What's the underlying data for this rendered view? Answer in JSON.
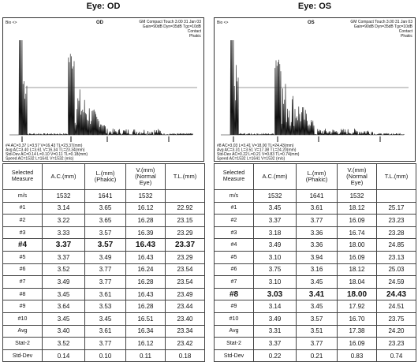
{
  "panels": [
    {
      "title": "Eye: OD",
      "scan": {
        "label": "Bio <>",
        "eye": "OD",
        "device": "GM Compact Touch 3.00  31 Jan 03",
        "settings": "Gain=90dB Dyn=35dB Tgc=10dB",
        "mode": "Contact",
        "lens": "Phakic",
        "readout": [
          "#4 AC=3.37 L=3.57 V=16.43 TL=23.37(mm)",
          "Avg AC=3.40 L=3.61 V=16.34 TL=23.34(mm)",
          "Std-Dev AC=0.14 L=0.10 V=0.11 TL=0.18(mm)",
          "Speed AC=1532 L=1641 V=1532 (m/s)"
        ]
      },
      "table": {
        "header": [
          [
            "Selected",
            "Measure"
          ],
          [
            "A.C.(mm)"
          ],
          [
            "L.(mm)",
            "(Phakic)"
          ],
          [
            "V.(mm)",
            "(Normal",
            "Eye)"
          ],
          [
            "T.L.(mm)"
          ]
        ],
        "rows": [
          [
            "m/s",
            "1532",
            "1641",
            "1532"
          ],
          [
            "#1",
            "3.14",
            "3.65",
            "16.12",
            "22.92"
          ],
          [
            "#2",
            "3.22",
            "3.65",
            "16.28",
            "23.15"
          ],
          [
            "#3",
            "3.33",
            "3.57",
            "16.39",
            "23.29"
          ],
          [
            "#4",
            "3.37",
            "3.57",
            "16.43",
            "23.37"
          ],
          [
            "#5",
            "3.37",
            "3.49",
            "16.43",
            "23.29"
          ],
          [
            "#6",
            "3.52",
            "3.77",
            "16.24",
            "23.54"
          ],
          [
            "#7",
            "3.49",
            "3.77",
            "16.28",
            "23.54"
          ],
          [
            "#8",
            "3.45",
            "3.61",
            "16.43",
            "23.49"
          ],
          [
            "#9",
            "3.64",
            "3.53",
            "16.28",
            "23.44"
          ],
          [
            "#10",
            "3.45",
            "3.45",
            "16.51",
            "23.40"
          ],
          [
            "Avg",
            "3.40",
            "3.61",
            "16.34",
            "23.34"
          ],
          [
            "Stat-2",
            "3.52",
            "3.77",
            "16.12",
            "23.42"
          ],
          [
            "Std-Dev",
            "0.14",
            "0.10",
            "0.11",
            "0.18"
          ]
        ]
      }
    },
    {
      "title": "Eye: OS",
      "scan": {
        "label": "Bio <>",
        "eye": "OS",
        "device": "GM Compact Touch 3.00  31 Jan 03",
        "settings": "Gain=90dB Dyn=35dB Tgc=10dB",
        "mode": "Contact",
        "lens": "Phakic",
        "readout": [
          "#8 AC=3.03 L=3.41 V=18.00 TL=24.43(mm)",
          "Avg AC=3.31 L=3.51 V=17.38 TL=24.20(mm)",
          "Std-Dev AC=0.22 L=0.21 V=0.83 TL=0.74(mm)",
          "Speed AC=1532 L=1641 V=1532 (m/s)"
        ]
      },
      "table": {
        "header": [
          [
            "Selected",
            "Measure"
          ],
          [
            "A.C.(mm)"
          ],
          [
            "L.(mm)",
            "(Phakic)"
          ],
          [
            "V.(mm)",
            "(Normal",
            "Eye)"
          ],
          [
            "T.L.(mm)"
          ]
        ],
        "rows": [
          [
            "m/s",
            "1532",
            "1641",
            "1532"
          ],
          [
            "#1",
            "3.45",
            "3.61",
            "18.12",
            "25.17"
          ],
          [
            "#2",
            "3.37",
            "3.77",
            "16.09",
            "23.23"
          ],
          [
            "#3",
            "3.18",
            "3.36",
            "16.74",
            "23.28"
          ],
          [
            "#4",
            "3.49",
            "3.36",
            "18.00",
            "24.85"
          ],
          [
            "#5",
            "3.10",
            "3.94",
            "16.09",
            "23.13"
          ],
          [
            "#6",
            "3.75",
            "3.16",
            "18.12",
            "25.03"
          ],
          [
            "#7",
            "3.10",
            "3.45",
            "18.04",
            "24.59"
          ],
          [
            "#8",
            "3.03",
            "3.41",
            "18.00",
            "24.43"
          ],
          [
            "#9",
            "3.14",
            "3.45",
            "17.92",
            "24.51"
          ],
          [
            "#10",
            "3.49",
            "3.57",
            "16.70",
            "23.75"
          ],
          [
            "Avg",
            "3.31",
            "3.51",
            "17.38",
            "24.20"
          ],
          [
            "Stat-2",
            "3.37",
            "3.77",
            "16.09",
            "23.23"
          ],
          [
            "Std-Dev",
            "0.22",
            "0.21",
            "0.83",
            "0.74"
          ]
        ]
      }
    }
  ]
}
